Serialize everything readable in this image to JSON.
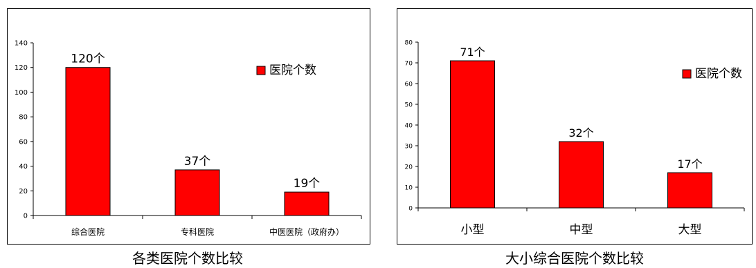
{
  "chart_data": [
    {
      "type": "bar",
      "categories": [
        "综合医院",
        "专科医院",
        "中医医院（政府办）"
      ],
      "series": [
        {
          "name": "医院个数",
          "values": [
            120,
            37,
            19
          ]
        }
      ],
      "data_labels": [
        "120个",
        "37个",
        "19个"
      ],
      "ylim": [
        0,
        140
      ],
      "yticks": [
        0,
        20,
        40,
        60,
        80,
        100,
        120,
        140
      ],
      "legend": "top-right",
      "grid": false,
      "bar_color": "#ff0000",
      "caption": "各类医院个数比较"
    },
    {
      "type": "bar",
      "categories": [
        "小型",
        "中型",
        "大型"
      ],
      "series": [
        {
          "name": "医院个数",
          "values": [
            71,
            32,
            17
          ]
        }
      ],
      "data_labels": [
        "71个",
        "32个",
        "17个"
      ],
      "ylim": [
        0,
        80
      ],
      "yticks": [
        0,
        10,
        20,
        30,
        40,
        50,
        60,
        70,
        80
      ],
      "legend": "top-right",
      "grid": false,
      "bar_color": "#ff0000",
      "caption": "大小综合医院个数比较"
    }
  ]
}
